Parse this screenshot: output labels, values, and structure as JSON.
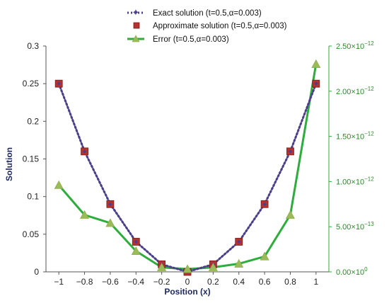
{
  "chart_data": {
    "type": "line",
    "x": [
      -1,
      -0.8,
      -0.6,
      -0.4,
      -0.2,
      0,
      0.2,
      0.4,
      0.6,
      0.8,
      1
    ],
    "xlabel": "Position (x)",
    "ylabel": "Solution",
    "xlim": [
      -1.1,
      1.1
    ],
    "ylim": [
      0,
      0.3
    ],
    "y2lim": [
      0,
      2.5e-12
    ],
    "x_ticks": [
      "−1",
      "−0.8",
      "−0.6",
      "−0.4",
      "−0.2",
      "0",
      "0.2",
      "0.4",
      "0.6",
      "0.8",
      "1"
    ],
    "y_ticks": [
      "0",
      "0.05",
      "0.1",
      "0.15",
      "0.2",
      "0.25",
      "0.3"
    ],
    "y2_ticks": [
      {
        "m": "0.00",
        "e": "0"
      },
      {
        "m": "5.00",
        "e": "−13"
      },
      {
        "m": "1.00",
        "e": "−12"
      },
      {
        "m": "1.50",
        "e": "−12"
      },
      {
        "m": "2.00",
        "e": "−12"
      },
      {
        "m": "2.50",
        "e": "−12"
      }
    ],
    "legend_position": "top",
    "series": [
      {
        "name": "Exact solution (t=0.5,α=0.003)",
        "axis": "left",
        "style": "dotted-line",
        "color": "#4b3f8a",
        "values": [
          0.25,
          0.16,
          0.09,
          0.04,
          0.01,
          0.0,
          0.01,
          0.04,
          0.09,
          0.16,
          0.25
        ]
      },
      {
        "name": "Approximate solution (t=0.5,α=0.003)",
        "axis": "left",
        "style": "square-markers",
        "color": "#b8312f",
        "values": [
          0.25,
          0.16,
          0.09,
          0.04,
          0.01,
          0.0,
          0.01,
          0.04,
          0.09,
          0.16,
          0.25
        ]
      },
      {
        "name": "Error (t=0.5,α=0.003)",
        "axis": "right",
        "style": "line-triangle",
        "color": "#2eac3c",
        "marker_color": "#9bbb59",
        "values": [
          9.6e-13,
          6.3e-13,
          5.4e-13,
          2.3e-13,
          5e-14,
          3e-14,
          5e-14,
          9e-14,
          1.7e-13,
          6.3e-13,
          2.3e-12
        ]
      }
    ]
  }
}
